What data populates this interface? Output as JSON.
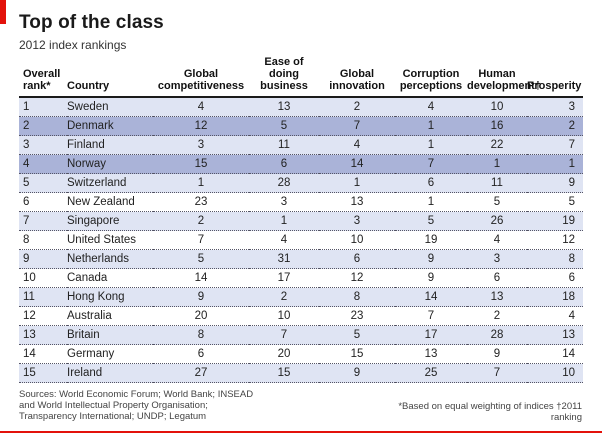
{
  "title": "Top of the class",
  "subtitle": "2012 index rankings",
  "columns": [
    "Overall rank*",
    "Country",
    "Global competitiveness",
    "Ease of doing business",
    "Global innovation",
    "Corruption perceptions",
    "Human development†",
    "Prosperity"
  ],
  "rows": [
    {
      "rank": "1",
      "country": "Sweden",
      "gc": "4",
      "edb": "13",
      "gi": "2",
      "cp": "4",
      "hd": "10",
      "pr": "3"
    },
    {
      "rank": "2",
      "country": "Denmark",
      "gc": "12",
      "edb": "5",
      "gi": "7",
      "cp": "1",
      "hd": "16",
      "pr": "2"
    },
    {
      "rank": "3",
      "country": "Finland",
      "gc": "3",
      "edb": "11",
      "gi": "4",
      "cp": "1",
      "hd": "22",
      "pr": "7"
    },
    {
      "rank": "4",
      "country": "Norway",
      "gc": "15",
      "edb": "6",
      "gi": "14",
      "cp": "7",
      "hd": "1",
      "pr": "1"
    },
    {
      "rank": "5",
      "country": "Switzerland",
      "gc": "1",
      "edb": "28",
      "gi": "1",
      "cp": "6",
      "hd": "11",
      "pr": "9"
    },
    {
      "rank": "6",
      "country": "New Zealand",
      "gc": "23",
      "edb": "3",
      "gi": "13",
      "cp": "1",
      "hd": "5",
      "pr": "5"
    },
    {
      "rank": "7",
      "country": "Singapore",
      "gc": "2",
      "edb": "1",
      "gi": "3",
      "cp": "5",
      "hd": "26",
      "pr": "19"
    },
    {
      "rank": "8",
      "country": "United States",
      "gc": "7",
      "edb": "4",
      "gi": "10",
      "cp": "19",
      "hd": "4",
      "pr": "12"
    },
    {
      "rank": "9",
      "country": "Netherlands",
      "gc": "5",
      "edb": "31",
      "gi": "6",
      "cp": "9",
      "hd": "3",
      "pr": "8"
    },
    {
      "rank": "10",
      "country": "Canada",
      "gc": "14",
      "edb": "17",
      "gi": "12",
      "cp": "9",
      "hd": "6",
      "pr": "6"
    },
    {
      "rank": "11",
      "country": "Hong Kong",
      "gc": "9",
      "edb": "2",
      "gi": "8",
      "cp": "14",
      "hd": "13",
      "pr": "18"
    },
    {
      "rank": "12",
      "country": "Australia",
      "gc": "20",
      "edb": "10",
      "gi": "23",
      "cp": "7",
      "hd": "2",
      "pr": "4"
    },
    {
      "rank": "13",
      "country": "Britain",
      "gc": "8",
      "edb": "7",
      "gi": "5",
      "cp": "17",
      "hd": "28",
      "pr": "13"
    },
    {
      "rank": "14",
      "country": "Germany",
      "gc": "6",
      "edb": "20",
      "gi": "15",
      "cp": "13",
      "hd": "9",
      "pr": "14"
    },
    {
      "rank": "15",
      "country": "Ireland",
      "gc": "27",
      "edb": "15",
      "gi": "9",
      "cp": "25",
      "hd": "7",
      "pr": "10"
    }
  ],
  "highlight_rows": [
    "2",
    "4"
  ],
  "footer": {
    "sources": "Sources: World Economic Forum; World Bank; INSEAD and World Intellectual Property Organisation; Transparency International; UNDP; Legatum",
    "notes": "*Based on equal weighting of indices   †2011 ranking"
  },
  "colors": {
    "accent": "#e3120b",
    "row_band": "#dfe4f3",
    "row_highlight": "#aab3d8"
  }
}
